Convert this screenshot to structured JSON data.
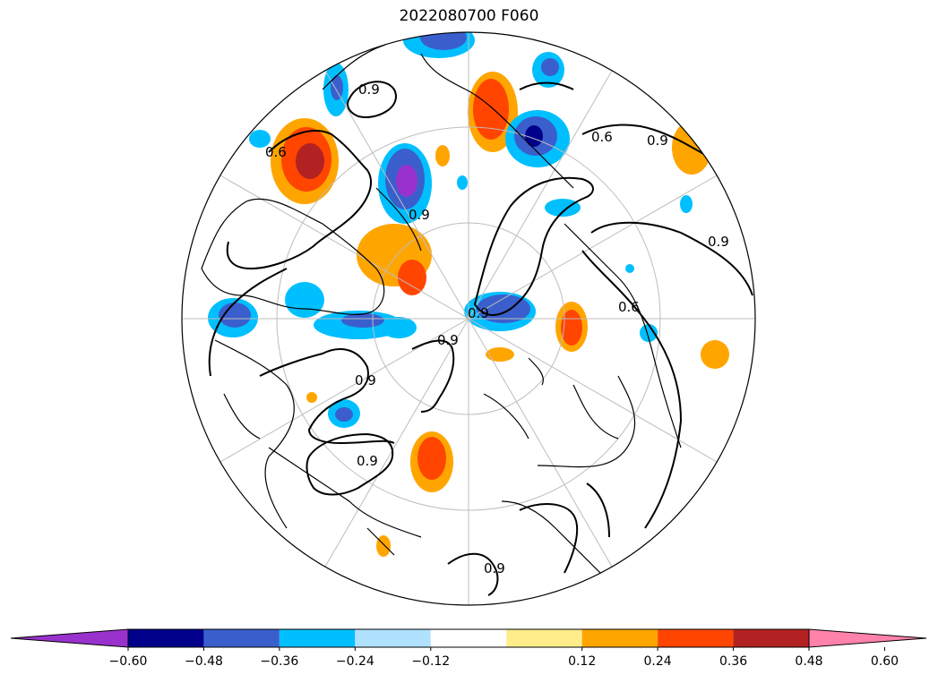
{
  "title": "2022080700 F060",
  "map": {
    "projection": "north-polar-stereographic",
    "contour_label": "0.9",
    "contour_label_alt": "0.6"
  },
  "colorbar": {
    "extend": "both",
    "ticks": [
      "−0.60",
      "−0.48",
      "−0.36",
      "−0.24",
      "−0.12",
      "0.12",
      "0.24",
      "0.36",
      "0.48",
      "0.60"
    ],
    "colors": [
      "#9932cc",
      "#00008b",
      "#3a5fcd",
      "#00bfff",
      "#b0e2ff",
      "#ffffff",
      "#ffec8b",
      "#ffa500",
      "#ff4500",
      "#b22222",
      "#ff82ab"
    ]
  }
}
